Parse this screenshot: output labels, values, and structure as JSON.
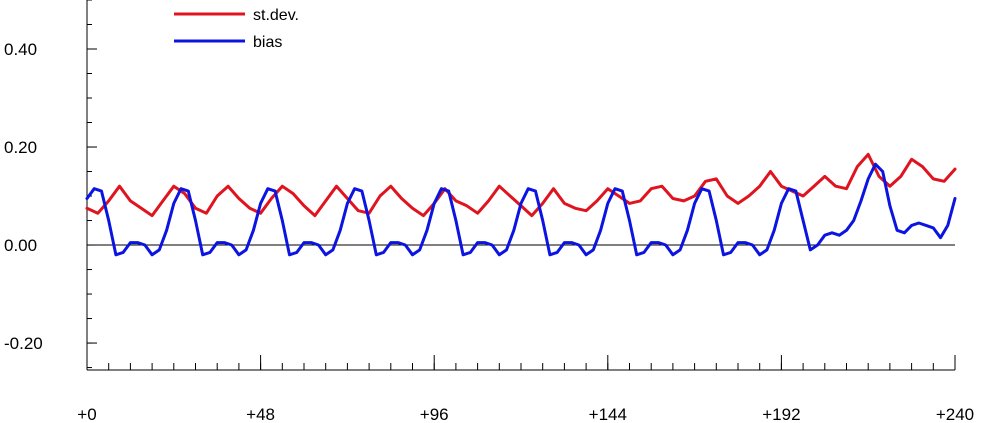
{
  "chart_data": {
    "type": "line",
    "title": "",
    "xlabel": "",
    "ylabel": "",
    "xlim": [
      0,
      240
    ],
    "ylim": [
      -0.25,
      0.5
    ],
    "x_ticks": [
      0,
      48,
      96,
      144,
      192,
      240
    ],
    "x_tick_labels": [
      "+0",
      "+48",
      "+96",
      "+144",
      "+192",
      "+240"
    ],
    "x_minor_step": 6,
    "y_ticks": [
      0.4,
      0.2,
      0.0,
      -0.2
    ],
    "y_tick_labels": [
      "0.40",
      "0.20",
      "0.00",
      "-0.20"
    ],
    "y_minor_step": 0.05,
    "zero_line": true,
    "grid": false,
    "legend_position": "top-left",
    "colors": {
      "st.dev.": "#e0141e",
      "bias": "#0b14e0"
    },
    "series": [
      {
        "name": "st.dev.",
        "x": [
          0,
          3,
          6,
          9,
          12,
          15,
          18,
          21,
          24,
          27,
          30,
          33,
          36,
          39,
          42,
          45,
          48,
          51,
          54,
          57,
          60,
          63,
          66,
          69,
          72,
          75,
          78,
          81,
          84,
          87,
          90,
          93,
          96,
          99,
          102,
          105,
          108,
          111,
          114,
          117,
          120,
          123,
          126,
          129,
          132,
          135,
          138,
          141,
          144,
          147,
          150,
          153,
          156,
          159,
          162,
          165,
          168,
          171,
          174,
          177,
          180,
          183,
          186,
          189,
          192,
          195,
          198,
          201,
          204,
          207,
          210,
          213,
          216,
          219,
          222,
          225,
          228,
          231,
          234,
          237,
          240
        ],
        "values": [
          0.075,
          0.065,
          0.09,
          0.12,
          0.09,
          0.075,
          0.06,
          0.09,
          0.12,
          0.105,
          0.075,
          0.065,
          0.1,
          0.12,
          0.095,
          0.075,
          0.065,
          0.095,
          0.12,
          0.105,
          0.08,
          0.06,
          0.09,
          0.12,
          0.095,
          0.07,
          0.065,
          0.1,
          0.12,
          0.095,
          0.075,
          0.06,
          0.085,
          0.115,
          0.09,
          0.08,
          0.065,
          0.09,
          0.12,
          0.1,
          0.08,
          0.06,
          0.085,
          0.115,
          0.085,
          0.075,
          0.07,
          0.09,
          0.115,
          0.1,
          0.085,
          0.09,
          0.115,
          0.12,
          0.095,
          0.09,
          0.1,
          0.13,
          0.135,
          0.1,
          0.085,
          0.1,
          0.12,
          0.15,
          0.12,
          0.11,
          0.1,
          0.12,
          0.14,
          0.12,
          0.115,
          0.16,
          0.185,
          0.14,
          0.12,
          0.14,
          0.175,
          0.16,
          0.135,
          0.13,
          0.155
        ]
      },
      {
        "name": "bias",
        "x": [
          0,
          2,
          4,
          6,
          8,
          10,
          12,
          14,
          16,
          18,
          20,
          22,
          24,
          26,
          28,
          30,
          32,
          34,
          36,
          38,
          40,
          42,
          44,
          46,
          48,
          50,
          52,
          54,
          56,
          58,
          60,
          62,
          64,
          66,
          68,
          70,
          72,
          74,
          76,
          78,
          80,
          82,
          84,
          86,
          88,
          90,
          92,
          94,
          96,
          98,
          100,
          102,
          104,
          106,
          108,
          110,
          112,
          114,
          116,
          118,
          120,
          122,
          124,
          126,
          128,
          130,
          132,
          134,
          136,
          138,
          140,
          142,
          144,
          146,
          148,
          150,
          152,
          154,
          156,
          158,
          160,
          162,
          164,
          166,
          168,
          170,
          172,
          174,
          176,
          178,
          180,
          182,
          184,
          186,
          188,
          190,
          192,
          194,
          196,
          198,
          200,
          202,
          204,
          206,
          208,
          210,
          212,
          214,
          216,
          218,
          220,
          222,
          224,
          226,
          228,
          230,
          232,
          234,
          236,
          238,
          240
        ],
        "values": [
          0.095,
          0.115,
          0.11,
          0.05,
          -0.02,
          -0.015,
          0.005,
          0.005,
          0.0,
          -0.02,
          -0.01,
          0.03,
          0.085,
          0.115,
          0.11,
          0.05,
          -0.02,
          -0.015,
          0.005,
          0.005,
          0.0,
          -0.02,
          -0.01,
          0.03,
          0.085,
          0.115,
          0.11,
          0.05,
          -0.02,
          -0.015,
          0.005,
          0.005,
          0.0,
          -0.02,
          -0.01,
          0.03,
          0.085,
          0.115,
          0.11,
          0.05,
          -0.02,
          -0.015,
          0.005,
          0.005,
          0.0,
          -0.02,
          -0.01,
          0.03,
          0.085,
          0.115,
          0.11,
          0.05,
          -0.02,
          -0.015,
          0.005,
          0.005,
          0.0,
          -0.02,
          -0.01,
          0.03,
          0.085,
          0.115,
          0.11,
          0.05,
          -0.02,
          -0.015,
          0.005,
          0.005,
          0.0,
          -0.02,
          -0.01,
          0.03,
          0.085,
          0.115,
          0.11,
          0.05,
          -0.02,
          -0.015,
          0.005,
          0.005,
          0.0,
          -0.02,
          -0.01,
          0.03,
          0.085,
          0.115,
          0.11,
          0.05,
          -0.02,
          -0.015,
          0.005,
          0.005,
          0.0,
          -0.02,
          -0.01,
          0.03,
          0.085,
          0.115,
          0.11,
          0.05,
          -0.01,
          0.0,
          0.02,
          0.025,
          0.02,
          0.03,
          0.05,
          0.09,
          0.135,
          0.165,
          0.15,
          0.08,
          0.03,
          0.025,
          0.04,
          0.045,
          0.04,
          0.035,
          0.015,
          0.04,
          0.095
        ]
      }
    ]
  }
}
